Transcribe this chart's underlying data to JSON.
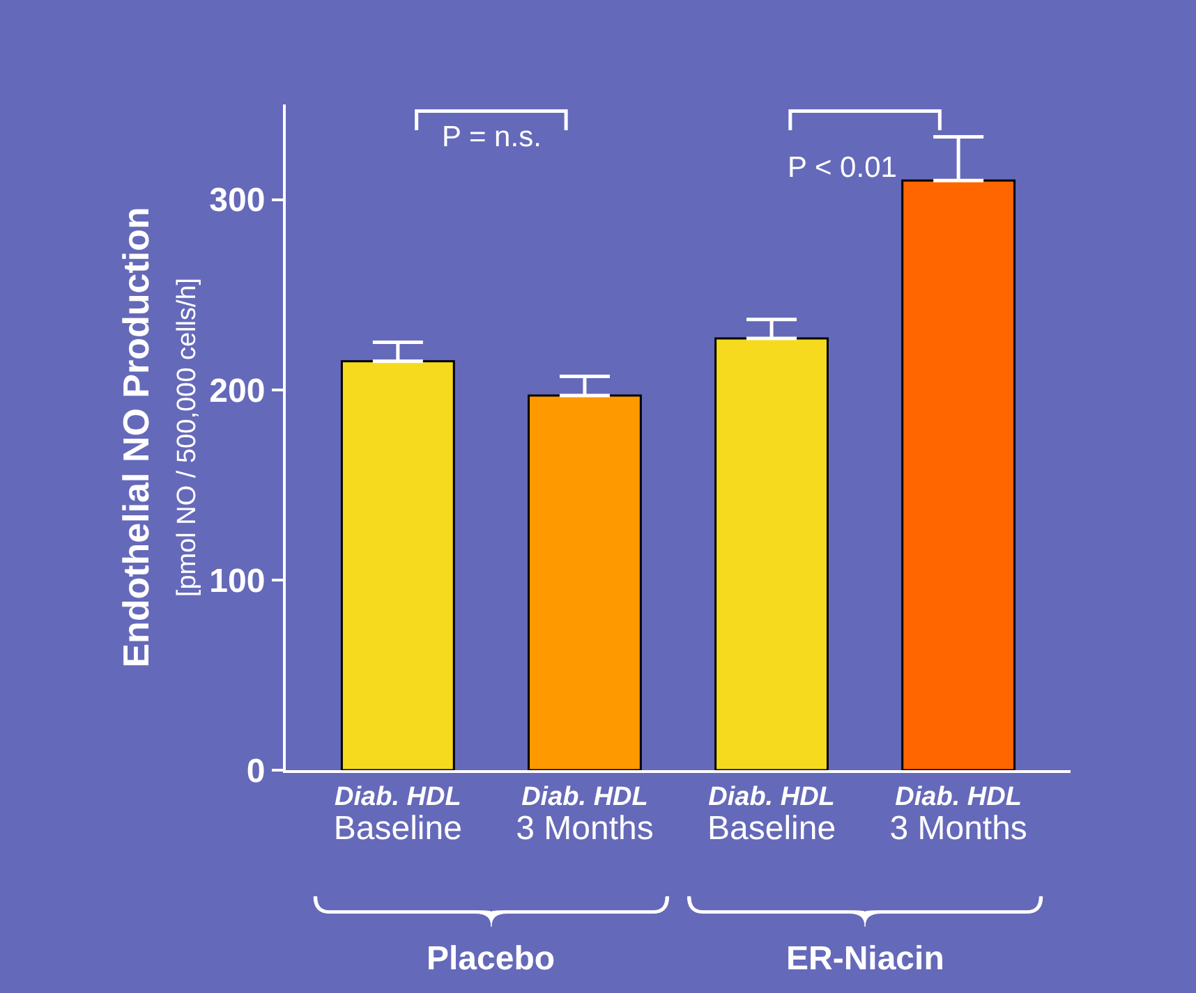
{
  "chart_data": {
    "type": "bar",
    "ylabel": "Endothelial NO Production\n[pmol NO / 500,000 cells/h]",
    "categories": [
      "Diab. HDL\nBaseline",
      "Diab. HDL\n3 Months",
      "Diab. HDL\nBaseline",
      "Diab. HDL\n3 Months"
    ],
    "values": [
      215,
      197,
      227,
      310
    ],
    "colors": [
      "#f6da1e",
      "#ff9900",
      "#f6da1e",
      "#ff6600"
    ],
    "errors": [
      [
        215,
        225
      ],
      [
        197,
        207
      ],
      [
        227,
        237
      ],
      [
        310,
        333
      ]
    ],
    "ylim": [
      0,
      350
    ],
    "yticks": [
      0,
      100,
      200,
      300
    ],
    "grid": false,
    "annotations": [
      "P = n.s.",
      "P < 0.01",
      "Placebo",
      "ER-Niacin"
    ]
  }
}
